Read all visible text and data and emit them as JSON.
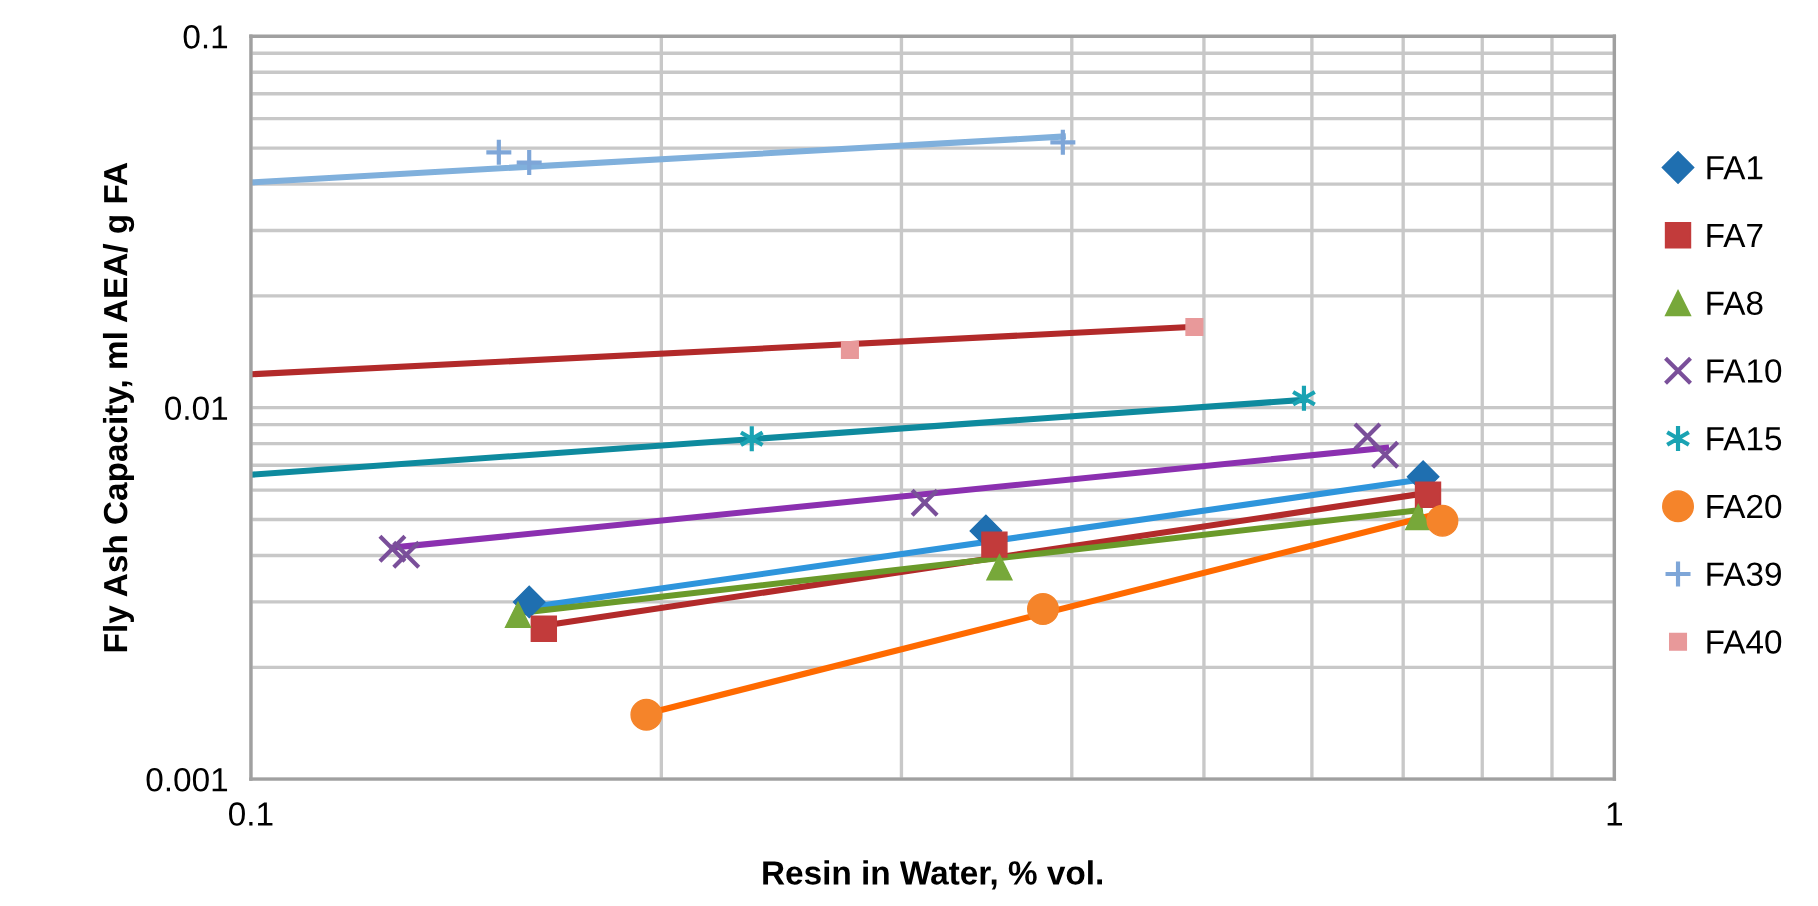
{
  "chart_data": {
    "type": "scatter",
    "xlabel": "Resin in Water, % vol.",
    "ylabel": "Fly Ash Capacity, ml AEA/ g FA",
    "log": "xy",
    "grid": true,
    "legend": "right",
    "xlim": [
      0.1,
      1
    ],
    "ylim": [
      0.001,
      0.1
    ],
    "xticks": [
      0.1,
      {
        "value": 0.2,
        "label": null
      },
      {
        "value": 0.3,
        "label": null
      },
      {
        "value": 0.4,
        "label": null
      },
      {
        "value": 0.5,
        "label": null
      },
      {
        "value": 0.6,
        "label": null
      },
      {
        "value": 0.7,
        "label": null
      },
      {
        "value": 0.8,
        "label": null
      },
      {
        "value": 0.9,
        "label": null
      },
      1
    ],
    "yticks": [
      0.001,
      {
        "value": 0.002,
        "label": null
      },
      {
        "value": 0.003,
        "label": null
      },
      {
        "value": 0.004,
        "label": null
      },
      {
        "value": 0.005,
        "label": null
      },
      {
        "value": 0.006,
        "label": null
      },
      {
        "value": 0.007,
        "label": null
      },
      {
        "value": 0.008,
        "label": null
      },
      {
        "value": 0.009,
        "label": null
      },
      0.01,
      {
        "value": 0.02,
        "label": null
      },
      {
        "value": 0.03,
        "label": null
      },
      {
        "value": 0.04,
        "label": null
      },
      {
        "value": 0.05,
        "label": null
      },
      {
        "value": 0.06,
        "label": null
      },
      {
        "value": 0.07,
        "label": null
      },
      {
        "value": 0.08,
        "label": null
      },
      {
        "value": 0.09,
        "label": null
      },
      0.1
    ],
    "series": [
      {
        "type": "line",
        "color": "#2e95dc",
        "x": [
          0.16,
          0.72
        ],
        "values": [
          0.0029,
          0.0064
        ]
      },
      {
        "type": "line",
        "color": "#b22a2a",
        "x": [
          0.165,
          0.73
        ],
        "values": [
          0.0026,
          0.0059
        ]
      },
      {
        "type": "line",
        "color": "#6a9a2a",
        "x": [
          0.157,
          0.72
        ],
        "values": [
          0.0028,
          0.0053
        ]
      },
      {
        "type": "line",
        "color": "#8b30b0",
        "x": [
          0.127,
          0.68
        ],
        "values": [
          0.0042,
          0.0078
        ]
      },
      {
        "type": "line",
        "color": "#0e8a9e",
        "x": [
          0.1,
          0.592
        ],
        "values": [
          0.0066,
          0.0105
        ]
      },
      {
        "type": "line",
        "color": "#ff6a00",
        "x": [
          0.195,
          0.745
        ],
        "values": [
          0.0015,
          0.0052
        ]
      },
      {
        "type": "line",
        "color": "#80b0dc",
        "x": [
          0.1,
          0.394
        ],
        "values": [
          0.0404,
          0.0537
        ]
      },
      {
        "type": "line",
        "color": "#b22a2a",
        "x": [
          0.1,
          0.49
        ],
        "values": [
          0.0123,
          0.0165
        ]
      },
      {
        "name": "FA1",
        "marker": "diamond",
        "color": "#1f6fb0",
        "x": [
          0.16,
          0.346,
          0.724
        ],
        "values": [
          0.003,
          0.00466,
          0.00652
        ]
      },
      {
        "name": "FA7",
        "marker": "square",
        "color": "#c23b3b",
        "x": [
          0.164,
          0.351,
          0.73
        ],
        "values": [
          0.00254,
          0.00428,
          0.00583
        ]
      },
      {
        "name": "FA8",
        "marker": "triangle",
        "color": "#77a83a",
        "x": [
          0.157,
          0.354,
          0.718
        ],
        "values": [
          0.00277,
          0.00372,
          0.00508
        ]
      },
      {
        "name": "FA10",
        "marker": "cross",
        "color": "#7a4f9a",
        "x": [
          0.127,
          0.13,
          0.312,
          0.659,
          0.679
        ],
        "values": [
          0.00417,
          0.00402,
          0.00555,
          0.00836,
          0.00747
        ]
      },
      {
        "name": "FA15",
        "marker": "cross",
        "color": "#1aa3b3",
        "x": [
          0.233,
          0.592
        ],
        "values": [
          0.00825,
          0.0106
        ]
      },
      {
        "name": "FA20",
        "marker": "circle",
        "color": "#f5842a",
        "x": [
          0.195,
          0.381,
          0.748
        ],
        "values": [
          0.00149,
          0.00287,
          0.00496
        ]
      },
      {
        "name": "FA39",
        "marker": "cross",
        "color": "#7ea6d8",
        "x": [
          0.152,
          0.16,
          0.394
        ],
        "values": [
          0.0487,
          0.0457,
          0.0518
        ]
      },
      {
        "name": "FA40",
        "marker": "square",
        "color": "#e8999a",
        "x": [
          0.275,
          0.492
        ],
        "values": [
          0.0143,
          0.0165
        ]
      }
    ]
  }
}
